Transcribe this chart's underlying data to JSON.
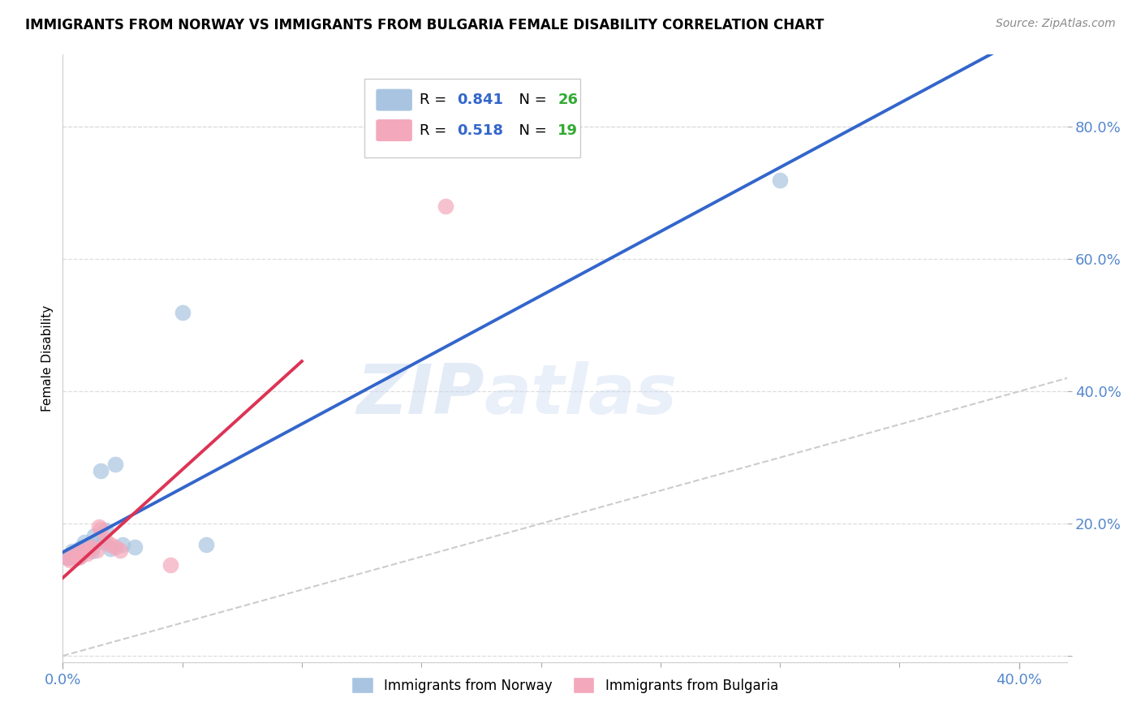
{
  "title": "IMMIGRANTS FROM NORWAY VS IMMIGRANTS FROM BULGARIA FEMALE DISABILITY CORRELATION CHART",
  "source": "Source: ZipAtlas.com",
  "ylabel": "Female Disability",
  "xlim": [
    0.0,
    0.42
  ],
  "ylim": [
    -0.01,
    0.91
  ],
  "plot_xlim": [
    0.0,
    0.4
  ],
  "plot_ylim": [
    0.0,
    0.9
  ],
  "xtick_minor_positions": [
    0.05,
    0.1,
    0.15,
    0.2,
    0.25,
    0.3,
    0.35
  ],
  "xtick_label_positions": [
    0.0,
    0.4
  ],
  "xtick_label_values": [
    "0.0%",
    "40.0%"
  ],
  "ytick_positions": [
    0.0,
    0.2,
    0.4,
    0.6,
    0.8
  ],
  "ytick_labels": [
    "",
    "20.0%",
    "40.0%",
    "60.0%",
    "80.0%"
  ],
  "norway_r": 0.841,
  "norway_n": 26,
  "bulgaria_r": 0.518,
  "bulgaria_n": 19,
  "norway_fill": "#a8c4e0",
  "bulgaria_fill": "#f4a8bb",
  "norway_line_color": "#3366cc",
  "bulgaria_line_color": "#dd3355",
  "diagonal_color": "#cccccc",
  "legend_r_color": "#3366cc",
  "legend_n_color": "#33aa33",
  "norway_points_x": [
    0.002,
    0.003,
    0.004,
    0.004,
    0.005,
    0.006,
    0.007,
    0.007,
    0.008,
    0.008,
    0.009,
    0.01,
    0.011,
    0.012,
    0.013,
    0.015,
    0.016,
    0.017,
    0.018,
    0.02,
    0.022,
    0.025,
    0.03,
    0.05,
    0.06,
    0.3
  ],
  "norway_points_y": [
    0.148,
    0.152,
    0.148,
    0.158,
    0.155,
    0.15,
    0.15,
    0.162,
    0.165,
    0.158,
    0.172,
    0.162,
    0.168,
    0.158,
    0.182,
    0.175,
    0.28,
    0.172,
    0.19,
    0.162,
    0.29,
    0.168,
    0.165,
    0.52,
    0.168,
    0.72
  ],
  "bulgaria_points_x": [
    0.002,
    0.003,
    0.005,
    0.006,
    0.007,
    0.008,
    0.009,
    0.01,
    0.011,
    0.012,
    0.014,
    0.015,
    0.016,
    0.018,
    0.02,
    0.022,
    0.024,
    0.045,
    0.16
  ],
  "bulgaria_points_y": [
    0.148,
    0.145,
    0.152,
    0.148,
    0.15,
    0.158,
    0.158,
    0.155,
    0.162,
    0.165,
    0.16,
    0.195,
    0.192,
    0.175,
    0.168,
    0.165,
    0.16,
    0.138,
    0.68
  ],
  "watermark": "ZIPatlas",
  "bg_color": "#ffffff",
  "grid_color": "#dddddd",
  "tick_color": "#5588cc"
}
